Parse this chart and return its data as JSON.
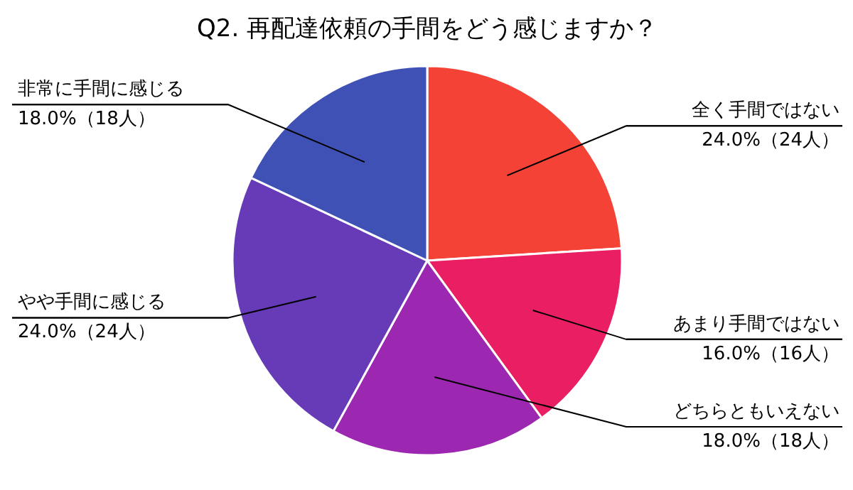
{
  "chart_data": {
    "type": "pie",
    "title": "Q2. 再配達依頼の手間をどう感じますか？",
    "categories": [
      "全く手間ではない",
      "あまり手間ではない",
      "どちらともいえない",
      "やや手間に感じる",
      "非常に手間に感じる"
    ],
    "values": [
      24,
      16,
      18,
      24,
      18
    ],
    "colors": [
      "#f44336",
      "#e91e63",
      "#9c27b0",
      "#673ab7",
      "#3f51b5"
    ],
    "value_labels": [
      "24.0%（24人）",
      "16.0%（16人）",
      "18.0%（18人）",
      "24.0%（24人）",
      "18.0%（18人）"
    ]
  }
}
